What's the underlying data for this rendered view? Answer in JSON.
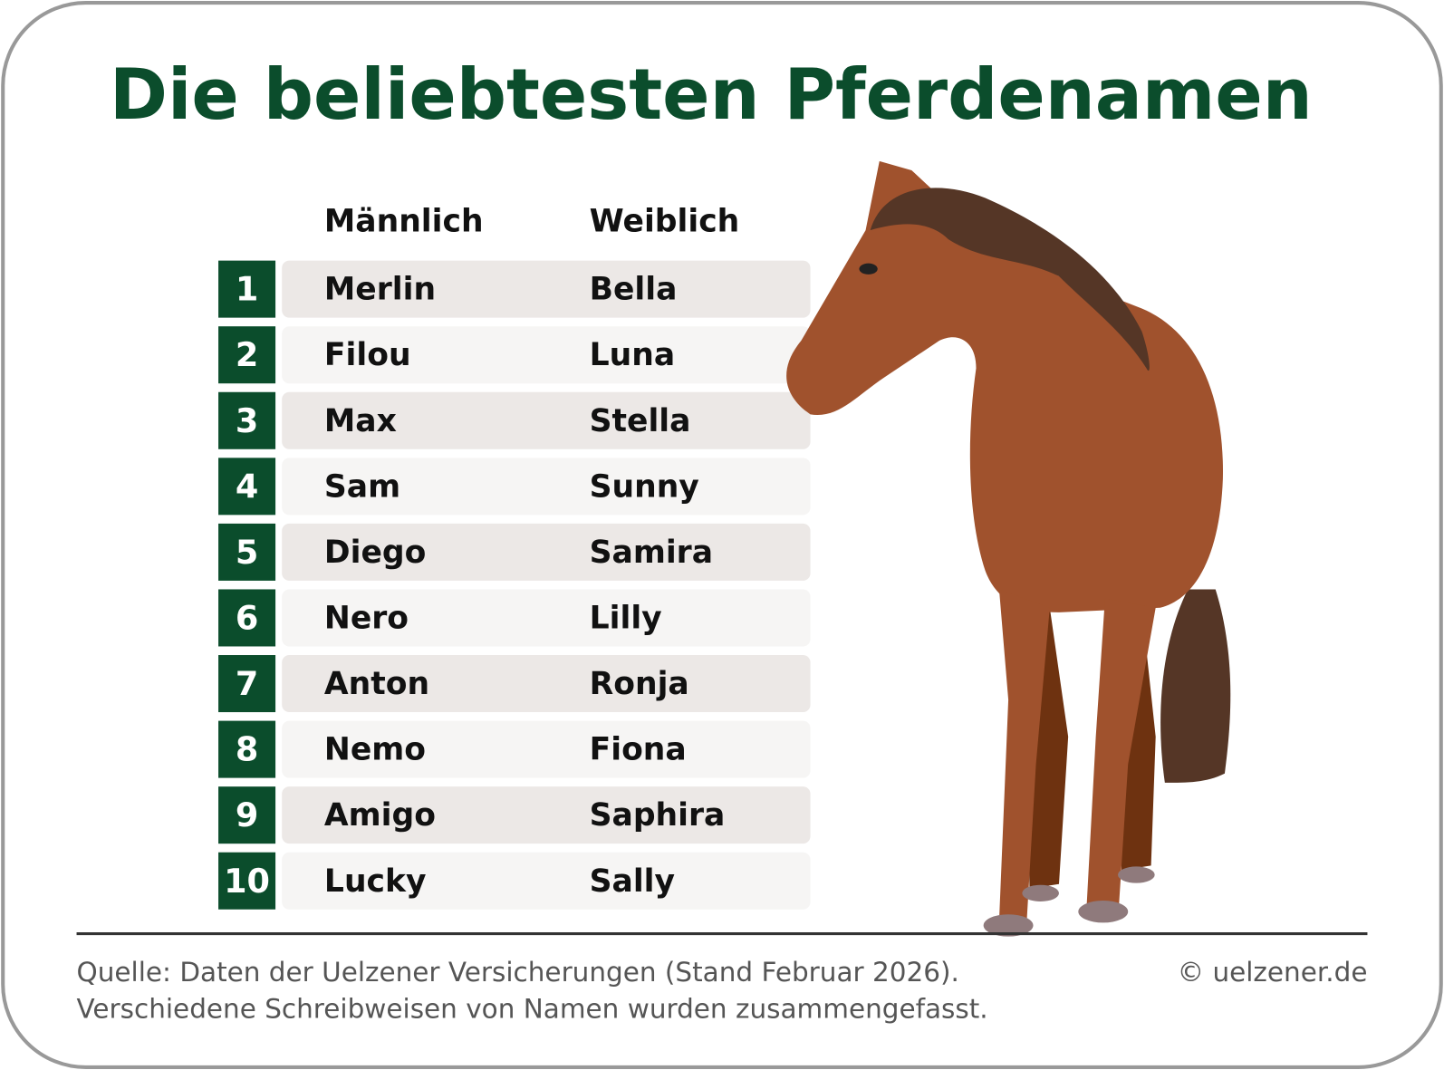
{
  "header": {
    "title": "Die beliebtesten Pferdenamen"
  },
  "table": {
    "columns": [
      "Männlich",
      "Weiblich"
    ],
    "rows": [
      [
        1,
        "Merlin",
        "Bella"
      ],
      [
        2,
        "Filou",
        "Luna"
      ],
      [
        3,
        "Max",
        "Stella"
      ],
      [
        4,
        "Sam",
        "Sunny"
      ],
      [
        5,
        "Diego",
        "Samira"
      ],
      [
        6,
        "Nero",
        "Lilly"
      ],
      [
        7,
        "Anton",
        "Ronja"
      ],
      [
        8,
        "Nemo",
        "Fiona"
      ],
      [
        9,
        "Amigo",
        "Saphira"
      ],
      [
        10,
        "Lucky",
        "Sally"
      ]
    ]
  },
  "footer": {
    "source": [
      "Quelle: Daten der Uelzener Versicherungen (Stand Februar 2026).",
      "Verschiedene Schreibweisen von Namen wurden zusammengefasst."
    ],
    "copyright": "© uelzener.de"
  }
}
